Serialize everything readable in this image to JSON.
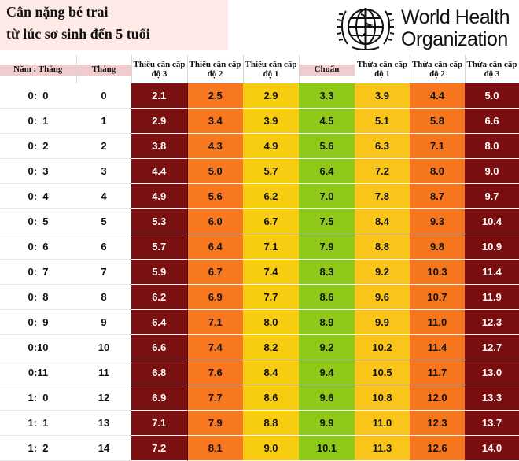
{
  "title": {
    "line1": "Cân nặng bé trai",
    "line2": "từ lúc sơ sinh đến 5 tuổi"
  },
  "logo": {
    "line1": "World Health",
    "line2": "Organization",
    "emblem_icon": "who-emblem-icon"
  },
  "headers": [
    "Năm : Tháng",
    "Tháng",
    "Thiếu cân cấp độ 3",
    "Thiếu cân cấp độ 2",
    "Thiếu cân cấp độ 1",
    "Chuẩn",
    "Thừa cân cấp độ 1",
    "Thừa cân cấp độ 2",
    "Thừa cân cấp độ 3"
  ],
  "colors": {
    "underweight_3": "#7b1010",
    "underweight_2": "#f77820",
    "underweight_1": "#f8cc10",
    "normal": "#8ec91a",
    "overweight_1": "#f9c51a",
    "overweight_2": "#f67620",
    "overweight_3": "#7a0d0d"
  },
  "rows": [
    {
      "age": "0:  0",
      "month": "0",
      "values": [
        "2.1",
        "2.5",
        "2.9",
        "3.3",
        "3.9",
        "4.4",
        "5.0"
      ]
    },
    {
      "age": "0:  1",
      "month": "1",
      "values": [
        "2.9",
        "3.4",
        "3.9",
        "4.5",
        "5.1",
        "5.8",
        "6.6"
      ]
    },
    {
      "age": "0:  2",
      "month": "2",
      "values": [
        "3.8",
        "4.3",
        "4.9",
        "5.6",
        "6.3",
        "7.1",
        "8.0"
      ]
    },
    {
      "age": "0:  3",
      "month": "3",
      "values": [
        "4.4",
        "5.0",
        "5.7",
        "6.4",
        "7.2",
        "8.0",
        "9.0"
      ]
    },
    {
      "age": "0:  4",
      "month": "4",
      "values": [
        "4.9",
        "5.6",
        "6.2",
        "7.0",
        "7.8",
        "8.7",
        "9.7"
      ]
    },
    {
      "age": "0:  5",
      "month": "5",
      "values": [
        "5.3",
        "6.0",
        "6.7",
        "7.5",
        "8.4",
        "9.3",
        "10.4"
      ]
    },
    {
      "age": "0:  6",
      "month": "6",
      "values": [
        "5.7",
        "6.4",
        "7.1",
        "7.9",
        "8.8",
        "9.8",
        "10.9"
      ]
    },
    {
      "age": "0:  7",
      "month": "7",
      "values": [
        "5.9",
        "6.7",
        "7.4",
        "8.3",
        "9.2",
        "10.3",
        "11.4"
      ]
    },
    {
      "age": "0:  8",
      "month": "8",
      "values": [
        "6.2",
        "6.9",
        "7.7",
        "8.6",
        "9.6",
        "10.7",
        "11.9"
      ]
    },
    {
      "age": "0:  9",
      "month": "9",
      "values": [
        "6.4",
        "7.1",
        "8.0",
        "8.9",
        "9.9",
        "11.0",
        "12.3"
      ]
    },
    {
      "age": "0:10",
      "month": "10",
      "values": [
        "6.6",
        "7.4",
        "8.2",
        "9.2",
        "10.2",
        "11.4",
        "12.7"
      ]
    },
    {
      "age": "0:11",
      "month": "11",
      "values": [
        "6.8",
        "7.6",
        "8.4",
        "9.4",
        "10.5",
        "11.7",
        "13.0"
      ]
    },
    {
      "age": "1:  0",
      "month": "12",
      "values": [
        "6.9",
        "7.7",
        "8.6",
        "9.6",
        "10.8",
        "12.0",
        "13.3"
      ]
    },
    {
      "age": "1:  1",
      "month": "13",
      "values": [
        "7.1",
        "7.9",
        "8.8",
        "9.9",
        "11.0",
        "12.3",
        "13.7"
      ]
    },
    {
      "age": "1:  2",
      "month": "14",
      "values": [
        "7.2",
        "8.1",
        "9.0",
        "10.1",
        "11.3",
        "12.6",
        "14.0"
      ]
    }
  ]
}
